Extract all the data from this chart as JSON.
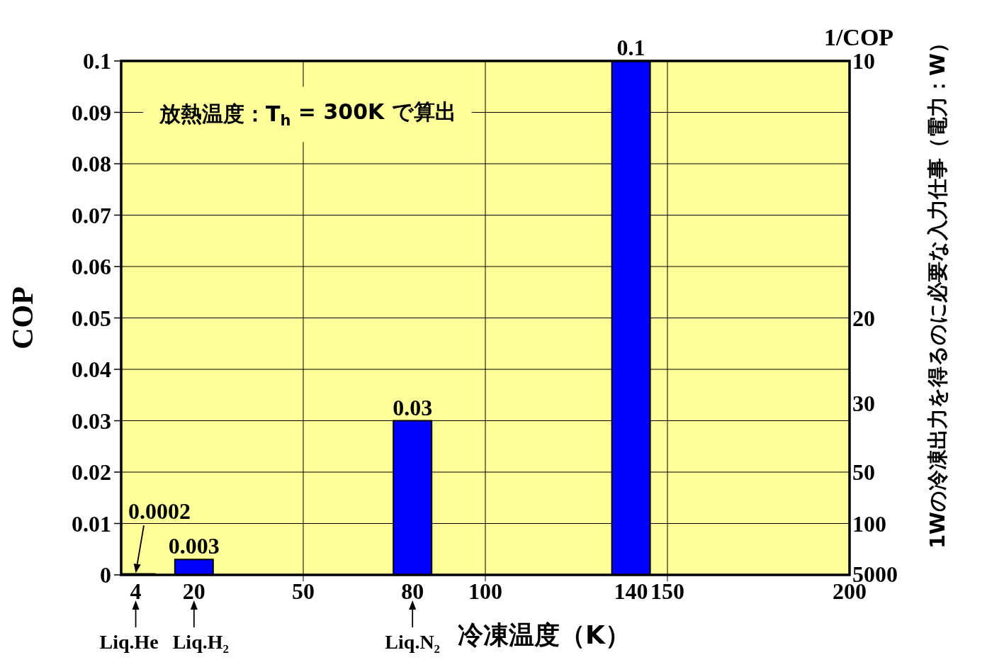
{
  "chart_data": {
    "type": "bar",
    "x": [
      4,
      20,
      80,
      140
    ],
    "values": [
      0.0002,
      0.003,
      0.03,
      0.1
    ],
    "color": "#0000ff",
    "xlabel": "冷凍温度（K）",
    "ylabel": "COP",
    "xlim": [
      0,
      200
    ],
    "xticks": [
      4,
      20,
      50,
      80,
      100,
      140,
      150,
      200
    ],
    "ylim": [
      0,
      0.1
    ],
    "yticks": [
      0,
      0.01,
      0.02,
      0.03,
      0.04,
      0.05,
      0.06,
      0.07,
      0.08,
      0.09,
      0.1
    ],
    "grid": "y",
    "ref_lines": [
      {
        "axis": "x",
        "value": 50,
        "color": "#000000"
      },
      {
        "axis": "x",
        "value": 100,
        "color": "#000000"
      },
      {
        "axis": "x",
        "value": 150,
        "color": "#000000"
      }
    ],
    "data_labels": true,
    "annotations": [
      "放熱温度：T$_{h}$ = 300K で算出",
      "1/COP",
      "1Wの冷凍出力を得るのに必要な入力仕事（電力：W）",
      "10",
      "20",
      "30",
      "50",
      "100",
      "5000",
      {
        "text": "Liq.He",
        "x": 4,
        "y": 0
      },
      {
        "text": "Liq.H₂",
        "x": 20,
        "y": 0
      },
      {
        "text": "Liq.N₂",
        "x": 80,
        "y": 0
      }
    ]
  }
}
